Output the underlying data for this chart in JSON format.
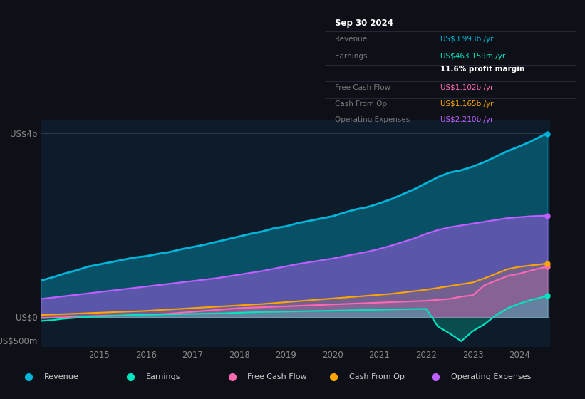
{
  "bg_color": "#0d1117",
  "plot_bg_color": "#0d1b2a",
  "title_box": {
    "date": "Sep 30 2024",
    "rows": [
      {
        "label": "Revenue",
        "value": "US$3.993b /yr",
        "value_color": "#00b4d8"
      },
      {
        "label": "Earnings",
        "value": "US$463.159m /yr",
        "value_color": "#00e5c0"
      },
      {
        "label": "",
        "value": "11.6% profit margin",
        "value_color": "#ffffff"
      },
      {
        "label": "Free Cash Flow",
        "value": "US$1.102b /yr",
        "value_color": "#ff69b4"
      },
      {
        "label": "Cash From Op",
        "value": "US$1.165b /yr",
        "value_color": "#ffa500"
      },
      {
        "label": "Operating Expenses",
        "value": "US$2.210b /yr",
        "value_color": "#bf5fff"
      }
    ]
  },
  "ylim": [
    -650,
    4300
  ],
  "yticks": [
    0,
    4000
  ],
  "ytick_labels": [
    "US$0",
    "US$4b"
  ],
  "ytick_neg": [
    -500
  ],
  "ytick_neg_labels": [
    "-US$500m"
  ],
  "xlabel_years": [
    2015,
    2016,
    2017,
    2018,
    2019,
    2020,
    2021,
    2022,
    2023,
    2024
  ],
  "series": {
    "revenue": {
      "color": "#00b4d8",
      "fill_alpha": 0.35,
      "line_width": 2.0,
      "label": "Revenue"
    },
    "earnings": {
      "color": "#00e5c0",
      "fill_alpha": 0.25,
      "line_width": 1.5,
      "label": "Earnings"
    },
    "free_cash_flow": {
      "color": "#ff69b4",
      "fill_alpha": 0.15,
      "line_width": 1.5,
      "label": "Free Cash Flow"
    },
    "cash_from_op": {
      "color": "#ffa500",
      "fill_alpha": 0.15,
      "line_width": 1.5,
      "label": "Cash From Op"
    },
    "operating_expenses": {
      "color": "#bf5fff",
      "fill_alpha": 0.45,
      "line_width": 1.5,
      "label": "Operating Expenses"
    }
  },
  "data": {
    "x": [
      2013.75,
      2014.0,
      2014.25,
      2014.5,
      2014.75,
      2015.0,
      2015.25,
      2015.5,
      2015.75,
      2016.0,
      2016.25,
      2016.5,
      2016.75,
      2017.0,
      2017.25,
      2017.5,
      2017.75,
      2018.0,
      2018.25,
      2018.5,
      2018.75,
      2019.0,
      2019.25,
      2019.5,
      2019.75,
      2020.0,
      2020.25,
      2020.5,
      2020.75,
      2021.0,
      2021.25,
      2021.5,
      2021.75,
      2022.0,
      2022.25,
      2022.5,
      2022.75,
      2023.0,
      2023.25,
      2023.5,
      2023.75,
      2024.0,
      2024.25,
      2024.5,
      2024.6
    ],
    "revenue": [
      800,
      870,
      950,
      1020,
      1100,
      1150,
      1200,
      1250,
      1300,
      1330,
      1380,
      1420,
      1480,
      1530,
      1580,
      1640,
      1700,
      1760,
      1820,
      1870,
      1940,
      1980,
      2050,
      2100,
      2150,
      2200,
      2280,
      2350,
      2400,
      2480,
      2570,
      2680,
      2790,
      2920,
      3050,
      3150,
      3200,
      3280,
      3380,
      3500,
      3620,
      3720,
      3830,
      3960,
      3993
    ],
    "earnings": [
      -80,
      -60,
      -30,
      -10,
      10,
      20,
      30,
      40,
      50,
      55,
      60,
      65,
      70,
      75,
      80,
      85,
      90,
      100,
      110,
      115,
      120,
      125,
      130,
      135,
      140,
      145,
      150,
      155,
      160,
      165,
      170,
      175,
      180,
      185,
      -200,
      -350,
      -520,
      -300,
      -150,
      50,
      200,
      300,
      380,
      440,
      463
    ],
    "free_cash_flow": [
      -20,
      -10,
      0,
      10,
      20,
      30,
      35,
      40,
      50,
      55,
      65,
      80,
      100,
      120,
      140,
      160,
      180,
      200,
      210,
      220,
      230,
      240,
      250,
      260,
      270,
      280,
      290,
      300,
      310,
      320,
      330,
      340,
      350,
      360,
      380,
      400,
      450,
      480,
      700,
      800,
      900,
      950,
      1020,
      1080,
      1102
    ],
    "cash_from_op": [
      50,
      60,
      70,
      80,
      90,
      100,
      110,
      120,
      130,
      140,
      155,
      170,
      185,
      200,
      215,
      230,
      245,
      260,
      275,
      290,
      310,
      330,
      350,
      370,
      390,
      410,
      430,
      450,
      470,
      490,
      510,
      540,
      570,
      600,
      640,
      680,
      720,
      760,
      850,
      950,
      1050,
      1100,
      1130,
      1160,
      1165
    ],
    "operating_expenses": [
      400,
      430,
      460,
      490,
      520,
      550,
      580,
      610,
      640,
      670,
      700,
      730,
      760,
      790,
      820,
      850,
      890,
      930,
      970,
      1010,
      1060,
      1110,
      1160,
      1200,
      1240,
      1280,
      1330,
      1380,
      1430,
      1490,
      1560,
      1640,
      1720,
      1820,
      1900,
      1960,
      2000,
      2040,
      2080,
      2120,
      2160,
      2180,
      2200,
      2210,
      2210
    ]
  },
  "xmin": 2013.75,
  "xmax": 2024.65,
  "hline_color": "#2a3a4a",
  "tick_color": "#888888",
  "legend_text_color": "#cccccc",
  "box_bg": "#0a0e14",
  "box_border": "#333344",
  "box_label_color": "#777777",
  "box_date_color": "#ffffff"
}
